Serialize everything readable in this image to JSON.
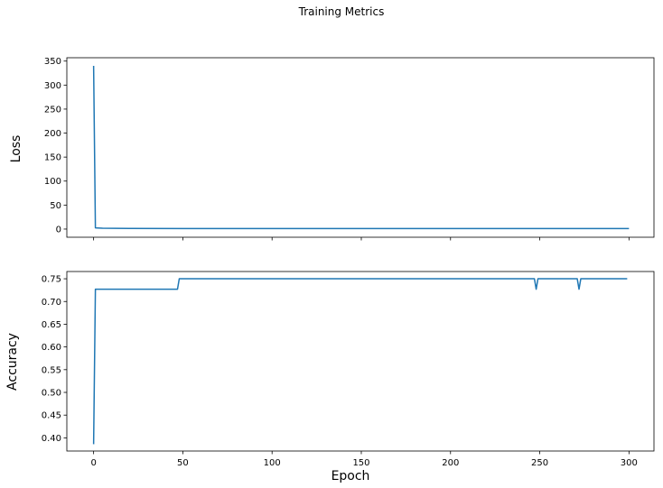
{
  "chart_data": {
    "title": "Training Metrics",
    "xlabel": "Epoch",
    "xlim": [
      -15,
      314
    ],
    "xticks": [
      0,
      50,
      100,
      150,
      200,
      250,
      300
    ],
    "xtick_labels": [
      "0",
      "50",
      "100",
      "150",
      "200",
      "250",
      "300"
    ],
    "line_color": "#1f77b4",
    "panels": [
      {
        "type": "line",
        "ylabel": "Loss",
        "ylim": [
          -17,
          357
        ],
        "yticks": [
          0,
          50,
          100,
          150,
          200,
          250,
          300,
          350
        ],
        "ytick_labels": [
          "0",
          "50",
          "100",
          "150",
          "200",
          "250",
          "300",
          "350"
        ],
        "show_xtick_labels": false,
        "series": [
          {
            "x": [
              0,
              1,
              5,
              20,
              50,
              100,
              150,
              200,
              250,
              300
            ],
            "y": [
              340,
              2.5,
              1.8,
              1.3,
              1.2,
              1.1,
              1.1,
              1.0,
              1.0,
              1.0
            ]
          }
        ]
      },
      {
        "type": "line",
        "ylabel": "Accuracy",
        "ylim": [
          0.371,
          0.766
        ],
        "yticks": [
          0.4,
          0.45,
          0.5,
          0.55,
          0.6,
          0.65,
          0.7,
          0.75
        ],
        "ytick_labels": [
          "0.40",
          "0.45",
          "0.50",
          "0.55",
          "0.60",
          "0.65",
          "0.70",
          "0.75"
        ],
        "show_xtick_labels": true,
        "series": [
          {
            "x": [
              0,
              1,
              47,
              48,
              247,
              248,
              249,
              271,
              272,
              273,
              299
            ],
            "y": [
              0.386,
              0.727,
              0.727,
              0.75,
              0.75,
              0.727,
              0.75,
              0.75,
              0.727,
              0.75,
              0.75
            ]
          }
        ]
      }
    ]
  }
}
